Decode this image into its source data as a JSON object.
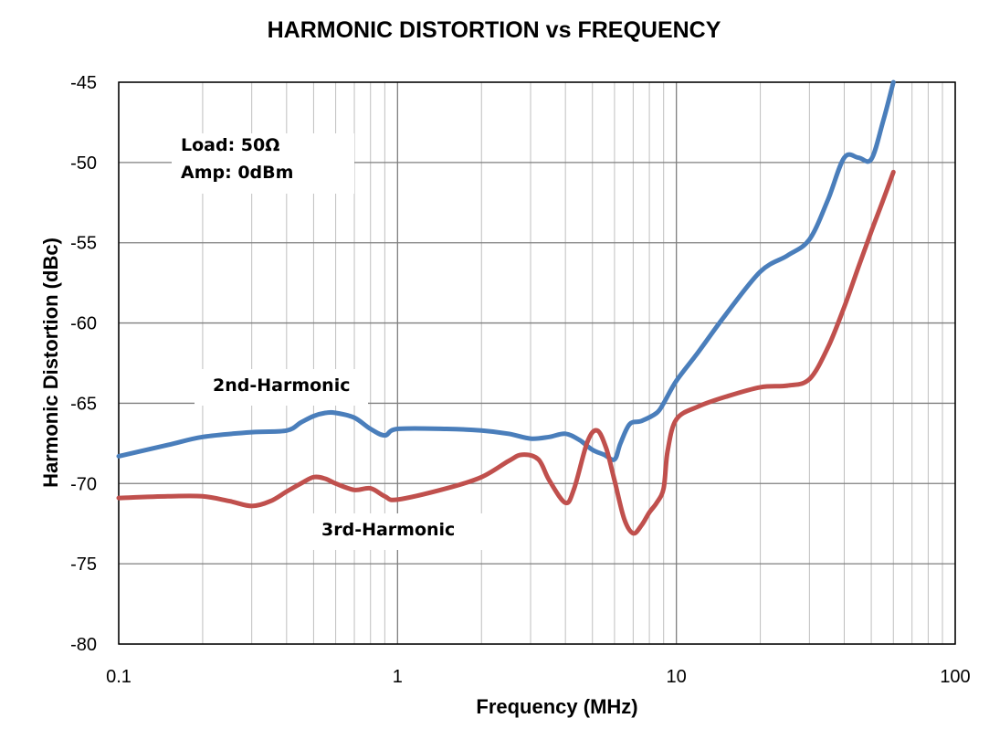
{
  "chart_data": {
    "type": "line",
    "title": "HARMONIC DISTORTION  vs  FREQUENCY",
    "xlabel": "Frequency (MHz)",
    "ylabel": "Harmonic Distortion (dBc)",
    "xscale": "log",
    "xlim": [
      0.1,
      100
    ],
    "ylim": [
      -80,
      -45
    ],
    "xticks": [
      0.1,
      1,
      10,
      100
    ],
    "xtick_labels": [
      "0.1",
      "1",
      "10",
      "100"
    ],
    "yticks": [
      -80,
      -75,
      -70,
      -65,
      -60,
      -55,
      -50,
      -45
    ],
    "ytick_labels": [
      "-80",
      "-75",
      "-70",
      "-65",
      "-60",
      "-55",
      "-50",
      "-45"
    ],
    "grid": true,
    "annotations": [
      "Load: 50Ω",
      "Amp: 0dBm"
    ],
    "series": [
      {
        "name": "2nd-Harmonic",
        "color": "#4a7ebb",
        "x": [
          0.1,
          0.15,
          0.2,
          0.3,
          0.4,
          0.45,
          0.5,
          0.55,
          0.6,
          0.7,
          0.8,
          0.9,
          1.0,
          1.5,
          2.0,
          2.5,
          3.0,
          3.5,
          4.0,
          4.5,
          5.0,
          5.5,
          6.0,
          6.3,
          6.8,
          7.5,
          8.5,
          9.0,
          10,
          12,
          15,
          20,
          25,
          30,
          35,
          40,
          45,
          50,
          55,
          60
        ],
        "values": [
          -68.3,
          -67.6,
          -67.1,
          -66.8,
          -66.7,
          -66.2,
          -65.8,
          -65.6,
          -65.6,
          -65.9,
          -66.6,
          -67.0,
          -66.6,
          -66.6,
          -66.7,
          -66.9,
          -67.2,
          -67.1,
          -66.9,
          -67.3,
          -67.9,
          -68.2,
          -68.5,
          -67.5,
          -66.3,
          -66.1,
          -65.6,
          -65.0,
          -63.6,
          -61.8,
          -59.5,
          -56.8,
          -55.8,
          -54.8,
          -52.3,
          -49.7,
          -49.7,
          -49.8,
          -47.5,
          -45.0
        ]
      },
      {
        "name": "3rd-Harmonic",
        "color": "#c0504d",
        "x": [
          0.1,
          0.15,
          0.2,
          0.25,
          0.3,
          0.35,
          0.4,
          0.45,
          0.5,
          0.55,
          0.6,
          0.7,
          0.8,
          0.9,
          1.0,
          1.5,
          2.0,
          2.5,
          2.8,
          3.2,
          3.5,
          4.0,
          4.3,
          4.8,
          5.2,
          5.6,
          6.0,
          6.5,
          7.0,
          7.5,
          8.0,
          8.5,
          9.0,
          9.3,
          10,
          12,
          15,
          20,
          25,
          30,
          35,
          40,
          45,
          50,
          55,
          60
        ],
        "values": [
          -70.9,
          -70.8,
          -70.8,
          -71.1,
          -71.4,
          -71.1,
          -70.5,
          -70.0,
          -69.6,
          -69.7,
          -70.0,
          -70.4,
          -70.3,
          -70.8,
          -71.0,
          -70.3,
          -69.6,
          -68.6,
          -68.2,
          -68.5,
          -69.8,
          -71.2,
          -70.3,
          -67.4,
          -66.7,
          -67.8,
          -69.8,
          -72.2,
          -73.1,
          -72.6,
          -71.8,
          -71.2,
          -70.3,
          -68.0,
          -66.0,
          -65.2,
          -64.6,
          -64.0,
          -63.9,
          -63.5,
          -61.5,
          -59.0,
          -56.5,
          -54.3,
          -52.4,
          -50.6
        ]
      }
    ],
    "series_labels": [
      "2nd-Harmonic",
      "3rd-Harmonic"
    ]
  }
}
